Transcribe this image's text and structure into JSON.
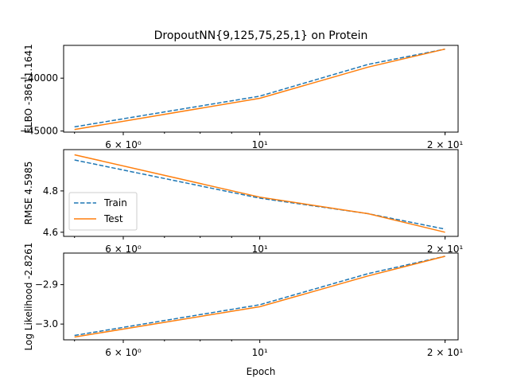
{
  "figure_title": "DropoutNN{9,125,75,25,1} on Protein",
  "colors": {
    "train": "#1f77b4",
    "test": "#ff7f0e"
  },
  "legend": {
    "placement": "left",
    "entries": [
      "Train",
      "Test"
    ]
  },
  "chart_data": [
    {
      "type": "line",
      "title": "DropoutNN{9,125,75,25,1} on Protein",
      "ylabel": "ELBO -38611.1641",
      "xlabel": "",
      "xscale": "log",
      "xlim": [
        4.8,
        21
      ],
      "ylim": [
        -45100,
        -36900
      ],
      "yticks": [
        -45000,
        -40000
      ],
      "ytick_labels": [
        "−45000",
        "−40000"
      ],
      "xtick_labels": [
        "6 × 10⁰",
        "10¹",
        "2 × 10¹"
      ],
      "x": [
        5,
        10,
        15,
        20
      ],
      "series": [
        {
          "name": "Train",
          "values": [
            -44600,
            -41700,
            -38700,
            -37250
          ]
        },
        {
          "name": "Test",
          "values": [
            -44850,
            -41900,
            -38950,
            -37250
          ]
        }
      ]
    },
    {
      "type": "line",
      "title": "",
      "ylabel": "RMSE 4.5985",
      "xlabel": "",
      "xscale": "log",
      "xlim": [
        4.8,
        21
      ],
      "ylim": [
        4.58,
        5.0
      ],
      "yticks": [
        4.6,
        4.8
      ],
      "ytick_labels": [
        "4.6",
        "4.8"
      ],
      "xtick_labels": [
        "6 × 10⁰",
        "10¹",
        "2 × 10¹"
      ],
      "x": [
        5,
        10,
        15,
        20
      ],
      "series": [
        {
          "name": "Train",
          "values": [
            4.95,
            4.765,
            4.69,
            4.615
          ]
        },
        {
          "name": "Test",
          "values": [
            4.975,
            4.77,
            4.69,
            4.6
          ]
        }
      ]
    },
    {
      "type": "line",
      "title": "",
      "ylabel": "Log Likelihood -2.8261",
      "xlabel": "Epoch",
      "xscale": "log",
      "xlim": [
        4.8,
        21
      ],
      "ylim": [
        -3.04,
        -2.82
      ],
      "yticks": [
        -3.0,
        -2.9
      ],
      "ytick_labels": [
        "−3.0",
        "−2.9"
      ],
      "xtick_labels": [
        "6 × 10⁰",
        "10¹",
        "2 × 10¹"
      ],
      "x": [
        5,
        10,
        15,
        20
      ],
      "series": [
        {
          "name": "Train",
          "values": [
            -3.029,
            -2.951,
            -2.872,
            -2.828
          ]
        },
        {
          "name": "Test",
          "values": [
            -3.033,
            -2.956,
            -2.878,
            -2.828
          ]
        }
      ]
    }
  ]
}
